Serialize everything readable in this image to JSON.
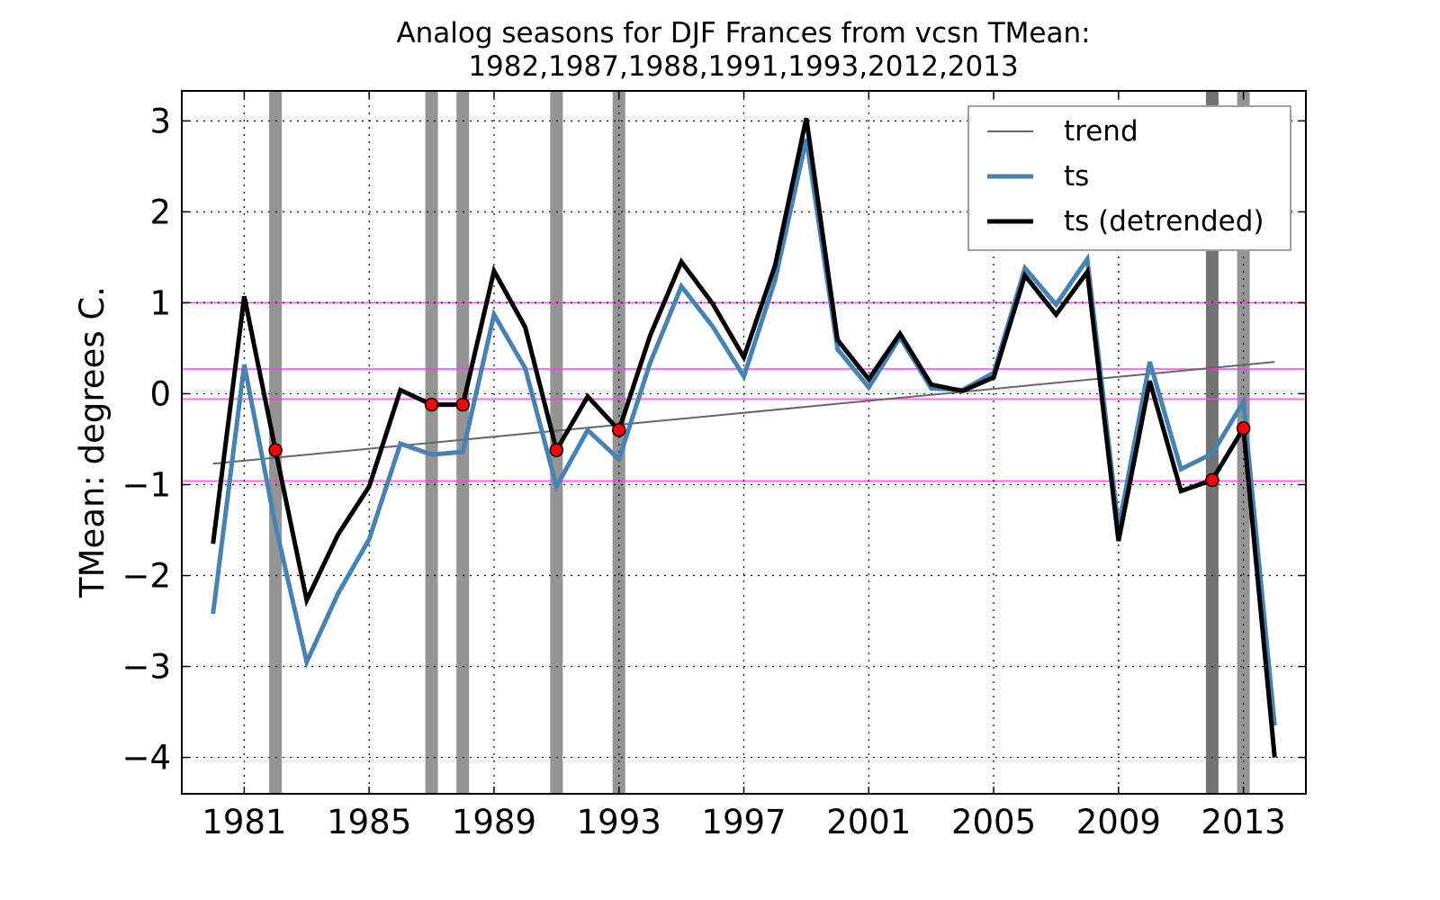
{
  "chart_data": {
    "type": "line",
    "title_line1": "Analog seasons for DJF Frances from vcsn TMean:",
    "title_line2": "1982,1987,1988,1991,1993,2012,2013",
    "xlabel": "",
    "ylabel": "TMean: degrees C.",
    "xlim": [
      1979.0,
      2015.0
    ],
    "ylim": [
      -4.4,
      3.33
    ],
    "xticks": [
      1981,
      1985,
      1989,
      1993,
      1997,
      2001,
      2005,
      2009,
      2013
    ],
    "xtick_labels": [
      "1981",
      "1985",
      "1989",
      "1993",
      "1997",
      "2001",
      "2005",
      "2009",
      "2013"
    ],
    "yticks": [
      3,
      2,
      1,
      0,
      -1,
      -2,
      -3,
      -4
    ],
    "ytick_labels": [
      "3",
      "2",
      "1",
      "0",
      "−1",
      "−2",
      "−3",
      "−4"
    ],
    "grid": true,
    "legend_position": "top-right",
    "analog_years": [
      1982,
      1987,
      1988,
      1991,
      1993,
      2012,
      2013
    ],
    "x": [
      1980,
      1981,
      1982,
      1983,
      1984,
      1985,
      1986,
      1987,
      1988,
      1989,
      1990,
      1991,
      1992,
      1993,
      1994,
      1995,
      1996,
      1997,
      1998,
      1999,
      2000,
      2001,
      2002,
      2003,
      2004,
      2005,
      2006,
      2007,
      2008,
      2009,
      2010,
      2011,
      2012,
      2013,
      2014
    ],
    "horizontal_lines": [
      1.0,
      0.27,
      -0.06,
      -0.96
    ],
    "series": [
      {
        "name": "trend",
        "color": "#666666",
        "x": [
          1980,
          2014
        ],
        "values": [
          -0.77,
          0.35
        ]
      },
      {
        "name": "ts",
        "color": "#4682b4",
        "values": [
          -2.42,
          0.32,
          -1.45,
          -2.95,
          -2.2,
          -1.6,
          -0.55,
          -0.67,
          -0.64,
          0.87,
          0.28,
          -1.02,
          -0.4,
          -0.72,
          0.34,
          1.18,
          0.74,
          0.19,
          1.25,
          2.8,
          0.49,
          0.07,
          0.62,
          0.06,
          0.04,
          0.23,
          1.38,
          0.98,
          1.48,
          -1.48,
          0.35,
          -0.83,
          -0.66,
          -0.09,
          -3.65
        ]
      },
      {
        "name": "ts (detrended)",
        "color": "#000000",
        "values": [
          -1.65,
          1.07,
          -0.62,
          -2.27,
          -1.55,
          -1.02,
          0.04,
          -0.12,
          -0.12,
          1.35,
          0.73,
          -0.62,
          -0.03,
          -0.4,
          0.64,
          1.45,
          0.99,
          0.4,
          1.41,
          3.03,
          0.59,
          0.16,
          0.66,
          0.1,
          0.03,
          0.18,
          1.3,
          0.87,
          1.34,
          -1.62,
          0.14,
          -1.07,
          -0.95,
          -0.38,
          -4.0
        ]
      }
    ],
    "legend": [
      "trend",
      "ts",
      "ts (detrended)"
    ]
  }
}
